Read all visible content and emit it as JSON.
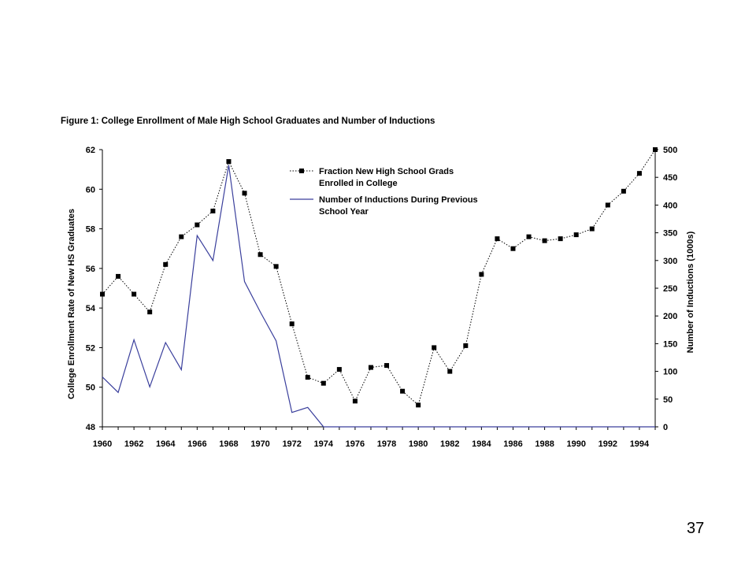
{
  "chart_data": {
    "type": "line",
    "title": "Figure 1: College Enrollment of Male High School Graduates and Number of Inductions",
    "ylabel": "College Enrollment Rate of New HS Graduates",
    "y2label": "Number of Inductions (1000s)",
    "xlabel": "",
    "ylim": [
      48,
      62
    ],
    "y2lim": [
      0,
      500
    ],
    "yticks": [
      48,
      50,
      52,
      54,
      56,
      58,
      60,
      62
    ],
    "y2ticks": [
      0,
      50,
      100,
      150,
      200,
      250,
      300,
      350,
      400,
      450,
      500
    ],
    "xlim": [
      1960,
      1995
    ],
    "xticks": [
      1960,
      1962,
      1964,
      1966,
      1968,
      1970,
      1972,
      1974,
      1976,
      1978,
      1980,
      1982,
      1984,
      1986,
      1988,
      1990,
      1992,
      1994
    ],
    "legend_position": "top-center",
    "series": [
      {
        "name": "Fraction New High School Grads Enrolled in College",
        "axis": "left",
        "style": "dotted-square-markers",
        "color": "#000000",
        "x": [
          1960,
          1961,
          1962,
          1963,
          1964,
          1965,
          1966,
          1967,
          1968,
          1969,
          1970,
          1971,
          1972,
          1973,
          1974,
          1975,
          1976,
          1977,
          1978,
          1979,
          1980,
          1981,
          1982,
          1983,
          1984,
          1985,
          1986,
          1987,
          1988,
          1989,
          1990,
          1991,
          1992,
          1993,
          1994,
          1995
        ],
        "values": [
          54.7,
          55.6,
          54.7,
          53.8,
          56.2,
          57.6,
          58.2,
          58.9,
          61.4,
          59.8,
          56.7,
          56.1,
          53.2,
          50.5,
          50.2,
          50.9,
          49.3,
          51.0,
          51.1,
          49.8,
          49.1,
          52.0,
          50.8,
          52.1,
          55.7,
          57.5,
          57.0,
          57.6,
          57.4,
          57.5,
          57.7,
          58.0,
          59.2,
          59.9,
          60.8,
          62.0
        ]
      },
      {
        "name": "Number of Inductions During Previous School Year",
        "axis": "right",
        "style": "solid",
        "color": "#3a3f9c",
        "x": [
          1960,
          1961,
          1962,
          1963,
          1964,
          1965,
          1966,
          1967,
          1968,
          1969,
          1970,
          1971,
          1972,
          1973,
          1974,
          1975,
          1976,
          1977,
          1978,
          1979,
          1980,
          1981,
          1982,
          1983,
          1984,
          1985,
          1986,
          1987,
          1988,
          1989,
          1990,
          1991,
          1992,
          1993,
          1994,
          1995
        ],
        "values": [
          90,
          62,
          157,
          72,
          152,
          103,
          345,
          300,
          472,
          262,
          207,
          155,
          26,
          35,
          0,
          0,
          0,
          0,
          0,
          0,
          0,
          0,
          0,
          0,
          0,
          0,
          0,
          0,
          0,
          0,
          0,
          0,
          0,
          0,
          0,
          0
        ]
      }
    ]
  },
  "legend": {
    "entry1_line1": "Fraction New High School Grads",
    "entry1_line2": "Enrolled in College",
    "entry2_line1": "Number of Inductions During Previous",
    "entry2_line2": "School Year"
  },
  "page_number": "37"
}
